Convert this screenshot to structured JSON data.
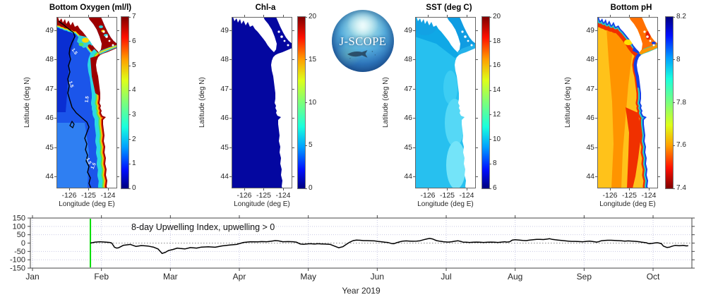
{
  "logo": {
    "text": "J-SCOPE"
  },
  "panels": [
    {
      "id": "oxygen",
      "title": "Bottom Oxygen (ml/l)",
      "ylabel": "Latitude (deg N)",
      "xlabel": "Longitude (deg E)",
      "lat_ticks": [
        49,
        48,
        47,
        46,
        45,
        44
      ],
      "lon_ticks": [
        -126,
        -125,
        -124
      ],
      "colorbar": {
        "min": 0,
        "max": 7,
        "ticks": [
          7,
          6,
          5,
          4,
          3,
          2,
          1,
          0
        ],
        "colormap": "jet",
        "reversed": false
      },
      "contour_label": "1.5",
      "palette": {
        "base": "#1b55ea",
        "deep": "#0a2ed2",
        "south": "#2f7ff2",
        "shelf_cyan": "#2bd8e2",
        "green": "#5ce24e",
        "yellow": "#ffd800",
        "orange": "#ff5a00",
        "red": "#9c0000",
        "strait_core": "#35d0d8",
        "strait_yellow": "#ffe000",
        "contour": "#000000",
        "contour_text": "#ffffff"
      }
    },
    {
      "id": "chla",
      "title": "Chl-a",
      "ylabel": "Latitude (deg N)",
      "xlabel": "Longitude (deg E)",
      "lat_ticks": [
        49,
        48,
        47,
        46,
        45,
        44
      ],
      "lon_ticks": [
        -126,
        -125,
        -124
      ],
      "colorbar": {
        "min": 0,
        "max": 20,
        "ticks": [
          20,
          15,
          10,
          5,
          0
        ],
        "colormap": "jet",
        "reversed": false
      },
      "palette": {
        "base": "#0407a0"
      }
    },
    {
      "id": "sst",
      "title": "SST (deg C)",
      "ylabel": "Latitude (deg N)",
      "xlabel": "Longitude (deg E)",
      "lat_ticks": [
        49,
        48,
        47,
        46,
        45,
        44
      ],
      "lon_ticks": [
        -126,
        -125,
        -124
      ],
      "colorbar": {
        "min": 6,
        "max": 20,
        "ticks": [
          20,
          18,
          16,
          14,
          12,
          10,
          8,
          6
        ],
        "colormap": "jet",
        "reversed": false
      },
      "palette": {
        "base": "#27c0ef",
        "north": "#0fa8e6",
        "north_deep": "#12a2e4",
        "georgia": "#0f9ce2",
        "strait": "#24b2ea",
        "mid_light": "#3dcdf3",
        "south_light": "#55d8f6",
        "coast_light": "#74e4f9"
      }
    },
    {
      "id": "ph",
      "title": "Bottom pH",
      "ylabel": "Latitude (deg N)",
      "xlabel": "Longitude (deg E)",
      "lat_ticks": [
        49,
        48,
        47,
        46,
        45,
        44
      ],
      "lon_ticks": [
        -126,
        -125,
        -124
      ],
      "colorbar": {
        "min": 7.4,
        "max": 8.2,
        "ticks": [
          8.2,
          8,
          7.8,
          7.6,
          7.4
        ],
        "colormap": "jet",
        "reversed": true
      },
      "palette": {
        "base": "#ffc21a",
        "orange": "#ff9400",
        "red": "#f03000",
        "coast_cyan": "#28cfc4",
        "coast_blue": "#1240e8",
        "strait_core": "#ff9800",
        "georgia": "#ff7000",
        "georgia_red": "#e82000",
        "junction_yellow": "#ffe000",
        "puget": "#ff8000"
      }
    }
  ],
  "timeseries": {
    "annotation": "8-day Upwelling Index, upwelling > 0",
    "xlabel": "Year 2019",
    "months": [
      "Jan",
      "Feb",
      "Mar",
      "Apr",
      "May",
      "Jun",
      "Jul",
      "Aug",
      "Sep",
      "Oct"
    ],
    "y_ticks": [
      150,
      100,
      50,
      0,
      -50,
      -100,
      -150
    ],
    "ylim": [
      -150,
      150
    ],
    "line_color": "#000000",
    "start_line_color": "#00dd00",
    "grid_color": "#c9c9e4",
    "zero_line_color": "#888888"
  },
  "chart_data": [
    {
      "type": "heatmap",
      "panel": "Bottom Oxygen (ml/l)",
      "colormap": "jet",
      "colorbar_range": [
        0,
        7
      ],
      "colorbar_ticks": [
        0,
        1,
        2,
        3,
        4,
        5,
        6,
        7
      ],
      "x_ticks": [
        -126,
        -125,
        -124
      ],
      "y_ticks": [
        49,
        48,
        47,
        46,
        45,
        44
      ],
      "contour_level": 1.5,
      "summary": "Low oxygen 1-2 ml/l (blue) offshore with black 1.5 ml/l contour; high oxygen 6-7 (dark red) hugging the coast, Strait of Juan de Fuca and Georgia Strait region."
    },
    {
      "type": "heatmap",
      "panel": "Chl-a",
      "colormap": "jet",
      "colorbar_range": [
        0,
        20
      ],
      "colorbar_ticks": [
        0,
        5,
        10,
        15,
        20
      ],
      "x_ticks": [
        -126,
        -125,
        -124
      ],
      "y_ticks": [
        49,
        48,
        47,
        46,
        45,
        44
      ],
      "summary": "Near-zero chlorophyll (uniform dark navy) over the whole domain."
    },
    {
      "type": "heatmap",
      "panel": "SST (deg C)",
      "colormap": "jet",
      "colorbar_range": [
        6,
        20
      ],
      "colorbar_ticks": [
        6,
        8,
        10,
        12,
        14,
        16,
        18,
        20
      ],
      "x_ticks": [
        -126,
        -125,
        -124
      ],
      "y_ticks": [
        49,
        48,
        47,
        46,
        45,
        44
      ],
      "summary": "SST about 10-12 C (cyan) everywhere, slightly cooler (deeper blue) in the north and Strait of Georgia, slightly warmer nearshore in the south."
    },
    {
      "type": "heatmap",
      "panel": "Bottom pH",
      "colormap": "jet reversed",
      "colorbar_range": [
        7.4,
        8.2
      ],
      "colorbar_ticks": [
        7.4,
        7.6,
        7.8,
        8,
        8.2
      ],
      "x_ticks": [
        -126,
        -125,
        -124
      ],
      "y_ticks": [
        49,
        48,
        47,
        46,
        45,
        44
      ],
      "summary": "Low pH 7.5-7.65 (orange/red) offshore and in the straits; higher pH 7.8-8.2 (cyan/blue) band along the coast."
    },
    {
      "type": "line",
      "title": "8-day Upwelling Index, upwelling > 0",
      "xlabel": "Year 2019",
      "x_unit": "months from Jan 1 (0 = Jan 1)",
      "x_tick_labels": [
        "Jan",
        "Feb",
        "Mar",
        "Apr",
        "May",
        "Jun",
        "Jul",
        "Aug",
        "Sep",
        "Oct"
      ],
      "ylim": [
        -150,
        150
      ],
      "y_ticks": [
        150,
        100,
        50,
        0,
        -50,
        -100,
        -150
      ],
      "start_marker_x": 0.84,
      "grid": true,
      "legend": "none",
      "series": [
        {
          "name": "upwelling index",
          "points": [
            [
              0.84,
              0
            ],
            [
              0.91,
              6
            ],
            [
              0.98,
              8
            ],
            [
              1.06,
              6
            ],
            [
              1.12,
              4
            ],
            [
              1.15,
              0
            ],
            [
              1.19,
              -25
            ],
            [
              1.22,
              -30
            ],
            [
              1.25,
              -28
            ],
            [
              1.32,
              -13
            ],
            [
              1.38,
              -10
            ],
            [
              1.42,
              -8
            ],
            [
              1.5,
              -20
            ],
            [
              1.58,
              -15
            ],
            [
              1.68,
              -18
            ],
            [
              1.76,
              -25
            ],
            [
              1.82,
              -35
            ],
            [
              1.88,
              -62
            ],
            [
              1.93,
              -55
            ],
            [
              1.97,
              -45
            ],
            [
              2.04,
              -38
            ],
            [
              2.1,
              -30
            ],
            [
              2.14,
              -32
            ],
            [
              2.21,
              -35
            ],
            [
              2.29,
              -27
            ],
            [
              2.38,
              -30
            ],
            [
              2.45,
              -24
            ],
            [
              2.55,
              -22
            ],
            [
              2.65,
              -25
            ],
            [
              2.75,
              -17
            ],
            [
              2.86,
              -12
            ],
            [
              2.96,
              -8
            ],
            [
              3.06,
              4
            ],
            [
              3.16,
              8
            ],
            [
              3.27,
              7
            ],
            [
              3.32,
              9
            ],
            [
              3.4,
              8
            ],
            [
              3.47,
              12
            ],
            [
              3.52,
              15
            ],
            [
              3.57,
              13
            ],
            [
              3.63,
              8
            ],
            [
              3.71,
              9
            ],
            [
              3.78,
              8
            ],
            [
              3.83,
              5
            ],
            [
              3.88,
              -5
            ],
            [
              3.93,
              -7
            ],
            [
              3.98,
              -5
            ],
            [
              4.03,
              -4
            ],
            [
              4.09,
              -6
            ],
            [
              4.14,
              -4
            ],
            [
              4.19,
              -5
            ],
            [
              4.24,
              -6
            ],
            [
              4.32,
              -8
            ],
            [
              4.39,
              -20
            ],
            [
              4.44,
              -28
            ],
            [
              4.5,
              -22
            ],
            [
              4.55,
              -8
            ],
            [
              4.6,
              5
            ],
            [
              4.65,
              15
            ],
            [
              4.7,
              18
            ],
            [
              4.75,
              17
            ],
            [
              4.8,
              15
            ],
            [
              4.85,
              15
            ],
            [
              4.91,
              14
            ],
            [
              4.96,
              13
            ],
            [
              5.01,
              10
            ],
            [
              5.06,
              8
            ],
            [
              5.11,
              5
            ],
            [
              5.16,
              3
            ],
            [
              5.21,
              -3
            ],
            [
              5.24,
              -4
            ],
            [
              5.28,
              2
            ],
            [
              5.33,
              8
            ],
            [
              5.37,
              12
            ],
            [
              5.42,
              13
            ],
            [
              5.47,
              12
            ],
            [
              5.52,
              11
            ],
            [
              5.57,
              12
            ],
            [
              5.62,
              14
            ],
            [
              5.67,
              20
            ],
            [
              5.72,
              25
            ],
            [
              5.76,
              28
            ],
            [
              5.8,
              25
            ],
            [
              5.83,
              20
            ],
            [
              5.86,
              15
            ],
            [
              5.9,
              12
            ],
            [
              5.93,
              10
            ],
            [
              5.96,
              8
            ],
            [
              6.03,
              6
            ],
            [
              6.08,
              8
            ],
            [
              6.13,
              12
            ],
            [
              6.17,
              14
            ],
            [
              6.21,
              10
            ],
            [
              6.24,
              6
            ],
            [
              6.29,
              5
            ],
            [
              6.34,
              4
            ],
            [
              6.39,
              5
            ],
            [
              6.44,
              6
            ],
            [
              6.49,
              5
            ],
            [
              6.54,
              4
            ],
            [
              6.6,
              5
            ],
            [
              6.65,
              6
            ],
            [
              6.7,
              5
            ],
            [
              6.75,
              4
            ],
            [
              6.8,
              6
            ],
            [
              6.85,
              8
            ],
            [
              6.88,
              6
            ],
            [
              6.92,
              8
            ],
            [
              6.96,
              18
            ],
            [
              7.0,
              20
            ],
            [
              7.06,
              18
            ],
            [
              7.11,
              16
            ],
            [
              7.16,
              15
            ],
            [
              7.21,
              18
            ],
            [
              7.26,
              20
            ],
            [
              7.31,
              22
            ],
            [
              7.36,
              22
            ],
            [
              7.41,
              21
            ],
            [
              7.47,
              24
            ],
            [
              7.5,
              26
            ],
            [
              7.54,
              22
            ],
            [
              7.58,
              20
            ],
            [
              7.62,
              18
            ],
            [
              7.67,
              16
            ],
            [
              7.72,
              14
            ],
            [
              7.77,
              12
            ],
            [
              7.82,
              10
            ],
            [
              7.87,
              10
            ],
            [
              7.93,
              9
            ],
            [
              7.98,
              8
            ],
            [
              8.03,
              10
            ],
            [
              8.08,
              12
            ],
            [
              8.11,
              10
            ],
            [
              8.15,
              8
            ],
            [
              8.18,
              6
            ],
            [
              8.21,
              8
            ],
            [
              8.25,
              14
            ],
            [
              8.3,
              16
            ],
            [
              8.34,
              17
            ],
            [
              8.39,
              17
            ],
            [
              8.44,
              16
            ],
            [
              8.49,
              15
            ],
            [
              8.54,
              14
            ],
            [
              8.59,
              12
            ],
            [
              8.64,
              13
            ],
            [
              8.69,
              12
            ],
            [
              8.75,
              10
            ],
            [
              8.8,
              8
            ],
            [
              8.83,
              6
            ],
            [
              8.87,
              4
            ],
            [
              8.9,
              2
            ],
            [
              8.93,
              -2
            ],
            [
              8.95,
              -4
            ],
            [
              8.98,
              -2
            ],
            [
              9.03,
              1
            ],
            [
              9.06,
              2
            ],
            [
              9.09,
              0
            ],
            [
              9.12,
              -4
            ],
            [
              9.15,
              -18
            ],
            [
              9.2,
              -26
            ],
            [
              9.24,
              -24
            ],
            [
              9.28,
              -18
            ],
            [
              9.32,
              -14
            ],
            [
              9.38,
              -16
            ],
            [
              9.44,
              -14
            ],
            [
              9.48,
              -17
            ],
            [
              9.51,
              -16
            ]
          ]
        }
      ]
    }
  ]
}
